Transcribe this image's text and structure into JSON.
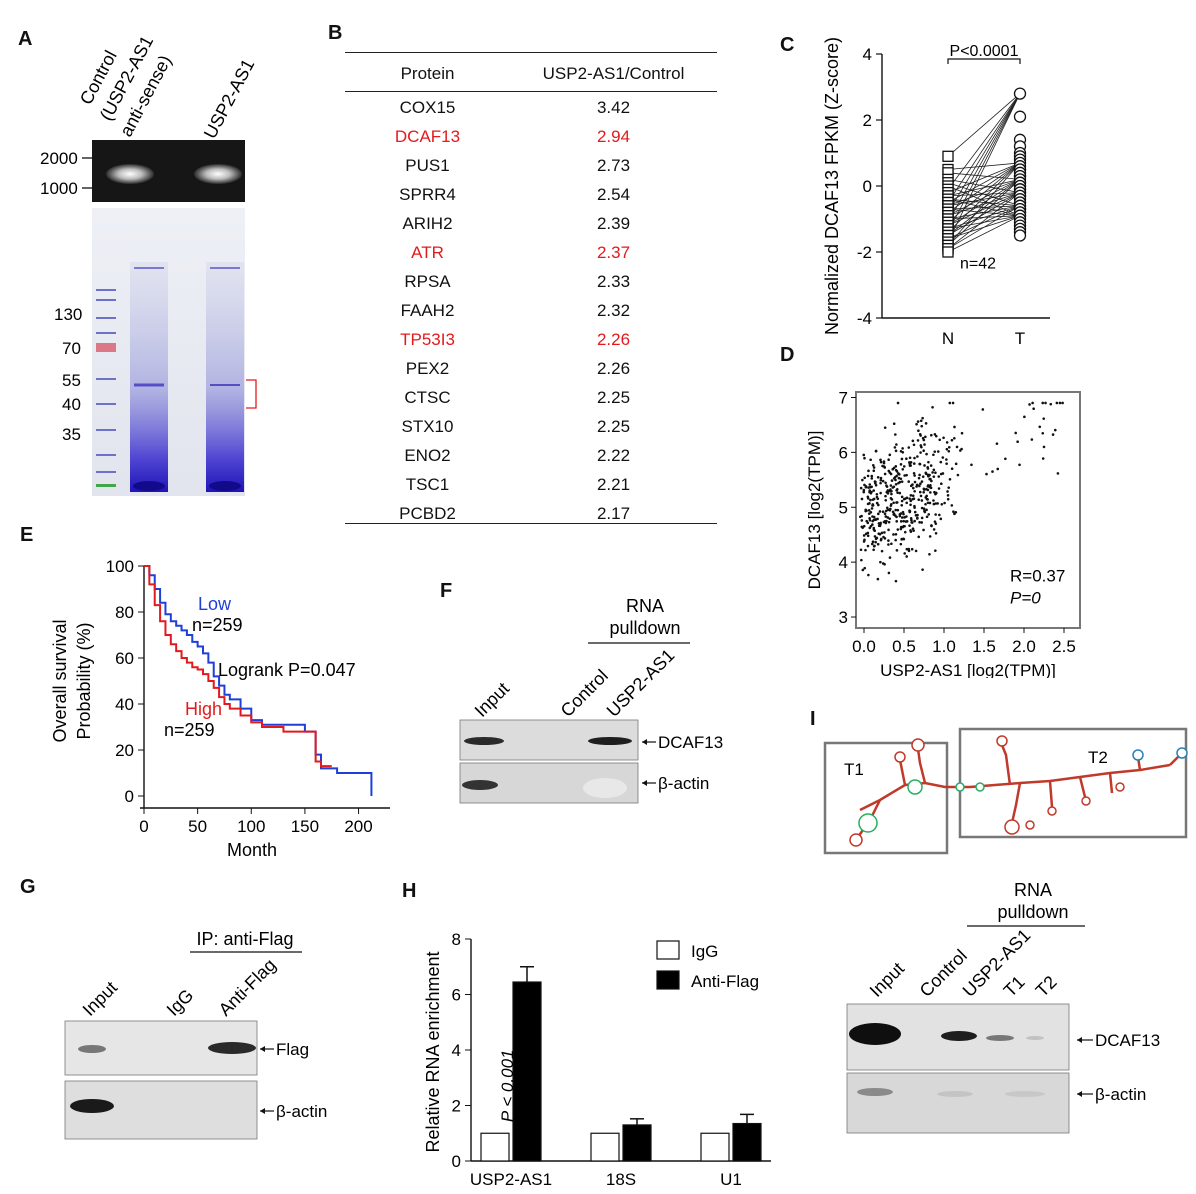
{
  "panel_labels": {
    "a": "A",
    "b": "B",
    "c": "C",
    "d": "D",
    "e": "E",
    "f": "F",
    "g": "G",
    "h": "H",
    "i": "I"
  },
  "panel_a": {
    "lane_labels": [
      "Control",
      "(USP2-AS1",
      "anti-sense)",
      "USP2-AS1"
    ],
    "gel_markers": [
      "2000",
      "1000"
    ],
    "kda_markers": [
      "130",
      "70",
      "55",
      "40",
      "35"
    ]
  },
  "panel_b": {
    "headers": [
      "Protein",
      "USP2-AS1/Control"
    ],
    "rows": [
      {
        "protein": "COX15",
        "ratio": "3.42",
        "highlight": false
      },
      {
        "protein": "DCAF13",
        "ratio": "2.94",
        "highlight": true
      },
      {
        "protein": "PUS1",
        "ratio": "2.73",
        "highlight": false
      },
      {
        "protein": "SPRR4",
        "ratio": "2.54",
        "highlight": false
      },
      {
        "protein": "ARIH2",
        "ratio": "2.39",
        "highlight": false
      },
      {
        "protein": "ATR",
        "ratio": "2.37",
        "highlight": true
      },
      {
        "protein": "RPSA",
        "ratio": "2.33",
        "highlight": false
      },
      {
        "protein": "FAAH2",
        "ratio": "2.32",
        "highlight": false
      },
      {
        "protein": "TP53I3",
        "ratio": "2.26",
        "highlight": true
      },
      {
        "protein": "PEX2",
        "ratio": "2.26",
        "highlight": false
      },
      {
        "protein": "CTSC",
        "ratio": "2.25",
        "highlight": false
      },
      {
        "protein": "STX10",
        "ratio": "2.25",
        "highlight": false
      },
      {
        "protein": "ENO2",
        "ratio": "2.22",
        "highlight": false
      },
      {
        "protein": "TSC1",
        "ratio": "2.21",
        "highlight": false
      },
      {
        "protein": "PCBD2",
        "ratio": "2.17",
        "highlight": false
      }
    ],
    "highlight_color": "#e31a1c"
  },
  "panel_f": {
    "header": [
      "RNA",
      "pulldown"
    ],
    "lanes": [
      "Input",
      "Control",
      "USP2-AS1"
    ],
    "bands": [
      "DCAF13",
      "β-actin"
    ]
  },
  "panel_g": {
    "header": "IP: anti-Flag",
    "lanes": [
      "Input",
      "IgG",
      "Anti-Flag"
    ],
    "bands": [
      "Flag",
      "β-actin"
    ]
  },
  "panel_i": {
    "structure_labels": [
      "T1",
      "T2"
    ],
    "header": [
      "RNA",
      "pulldown"
    ],
    "lanes": [
      "Input",
      "Control",
      "USP2-AS1",
      "T1",
      "T2"
    ],
    "bands": [
      "DCAF13",
      "β-actin"
    ]
  },
  "chart_data": [
    {
      "id": "C",
      "type": "scatter",
      "title": "",
      "ylabel": "Normalized DCAF13 FPKM (Z-score)",
      "xlabel": "",
      "categories": [
        "N",
        "T"
      ],
      "ylim": [
        -4,
        4
      ],
      "yticks": [
        "4",
        "2",
        "0",
        "-2",
        "-4"
      ],
      "annotations": [
        "P<0.0001",
        "n=42"
      ],
      "series": [
        {
          "name": "N",
          "values": [
            0.9,
            0.5,
            0.4,
            0.2,
            0.1,
            0.0,
            -0.1,
            -0.2,
            -0.3,
            -0.3,
            -0.4,
            -0.4,
            -0.5,
            -0.5,
            -0.6,
            -0.6,
            -0.7,
            -0.7,
            -0.8,
            -0.8,
            -0.9,
            -0.9,
            -1.0,
            -1.0,
            -1.1,
            -1.1,
            -1.2,
            -1.2,
            -1.3,
            -1.3,
            -1.4,
            -1.4,
            -1.5,
            -1.5,
            -1.6,
            -1.6,
            -1.7,
            -1.8,
            -1.8,
            -1.9,
            -1.9,
            -2.0
          ]
        },
        {
          "name": "T",
          "values": [
            2.8,
            2.1,
            1.4,
            1.2,
            1.0,
            0.9,
            0.8,
            0.7,
            0.6,
            0.5,
            0.5,
            0.4,
            0.3,
            0.3,
            0.2,
            0.1,
            0.1,
            0.0,
            0.0,
            -0.1,
            -0.1,
            -0.2,
            -0.2,
            -0.3,
            -0.3,
            -0.4,
            -0.5,
            -0.5,
            -0.6,
            -0.6,
            -0.7,
            -0.7,
            -0.8,
            -0.8,
            -0.9,
            -0.9,
            -1.0,
            -1.1,
            -1.2,
            -1.3,
            -1.4,
            -1.5
          ]
        }
      ]
    },
    {
      "id": "D",
      "type": "scatter",
      "title": "",
      "xlabel": "USP2-AS1 [log2(TPM)]",
      "ylabel": "DCAF13 [log2(TPM)]",
      "xlim": [
        -0.1,
        2.7
      ],
      "ylim": [
        2.8,
        7.1
      ],
      "xticks": [
        "0.0",
        "0.5",
        "1.0",
        "1.5",
        "2.0",
        "2.5"
      ],
      "yticks": [
        "7",
        "6",
        "5",
        "4",
        "3"
      ],
      "annotations": [
        "R=0.37",
        "P=0"
      ],
      "n_points": 500,
      "trend": {
        "x_center": 0.6,
        "y_center": 5.3,
        "r": 0.37
      },
      "note": "individual points estimated: cloud centred near (0.5, 5.3)"
    },
    {
      "id": "E",
      "type": "line",
      "title": "",
      "xlabel": "Month",
      "ylabel": "Overall survival Probability (%)",
      "xlim": [
        0,
        220
      ],
      "ylim": [
        0,
        100
      ],
      "xticks": [
        "0",
        "50",
        "100",
        "150",
        "200"
      ],
      "yticks": [
        "100",
        "80",
        "60",
        "40",
        "20",
        "0"
      ],
      "annotations": [
        "Logrank P=0.047"
      ],
      "series": [
        {
          "name": "Low",
          "n_label": "n=259",
          "color": "#1f3fd9",
          "x": [
            0,
            5,
            10,
            15,
            20,
            25,
            30,
            35,
            40,
            45,
            50,
            55,
            60,
            65,
            70,
            75,
            80,
            90,
            100,
            110,
            120,
            140,
            150,
            160,
            165,
            180,
            200,
            212,
            212
          ],
          "y": [
            100,
            96,
            90,
            84,
            79,
            76,
            74,
            72,
            70,
            67,
            65,
            62,
            58,
            52,
            48,
            44,
            42,
            38,
            33,
            31,
            31,
            31,
            28,
            18,
            12,
            10,
            10,
            10,
            0
          ]
        },
        {
          "name": "High",
          "n_label": "n=259",
          "color": "#e31a1c",
          "x": [
            0,
            5,
            10,
            15,
            20,
            25,
            30,
            35,
            40,
            45,
            50,
            55,
            60,
            65,
            70,
            75,
            80,
            90,
            100,
            110,
            130,
            150,
            160,
            165,
            175
          ],
          "y": [
            100,
            92,
            83,
            76,
            70,
            66,
            63,
            60,
            58,
            56,
            55,
            53,
            50,
            47,
            43,
            40,
            38,
            35,
            32,
            30,
            28,
            28,
            15,
            13,
            13
          ]
        }
      ]
    },
    {
      "id": "H",
      "type": "bar",
      "title": "",
      "xlabel": "",
      "ylabel": "Relative RNA enrichment",
      "categories": [
        "USP2-AS1",
        "18S",
        "U1"
      ],
      "ylim": [
        0,
        8
      ],
      "yticks": [
        "8",
        "6",
        "4",
        "2",
        "0"
      ],
      "annotations": [
        "P < 0.001"
      ],
      "series": [
        {
          "name": "IgG",
          "color": "#ffffff",
          "values": [
            1.0,
            1.0,
            1.0
          ],
          "errors": [
            0,
            0,
            0
          ]
        },
        {
          "name": "Anti-Flag",
          "color": "#000000",
          "values": [
            6.45,
            1.3,
            1.35
          ],
          "errors": [
            0.55,
            0.22,
            0.33
          ]
        }
      ]
    }
  ]
}
